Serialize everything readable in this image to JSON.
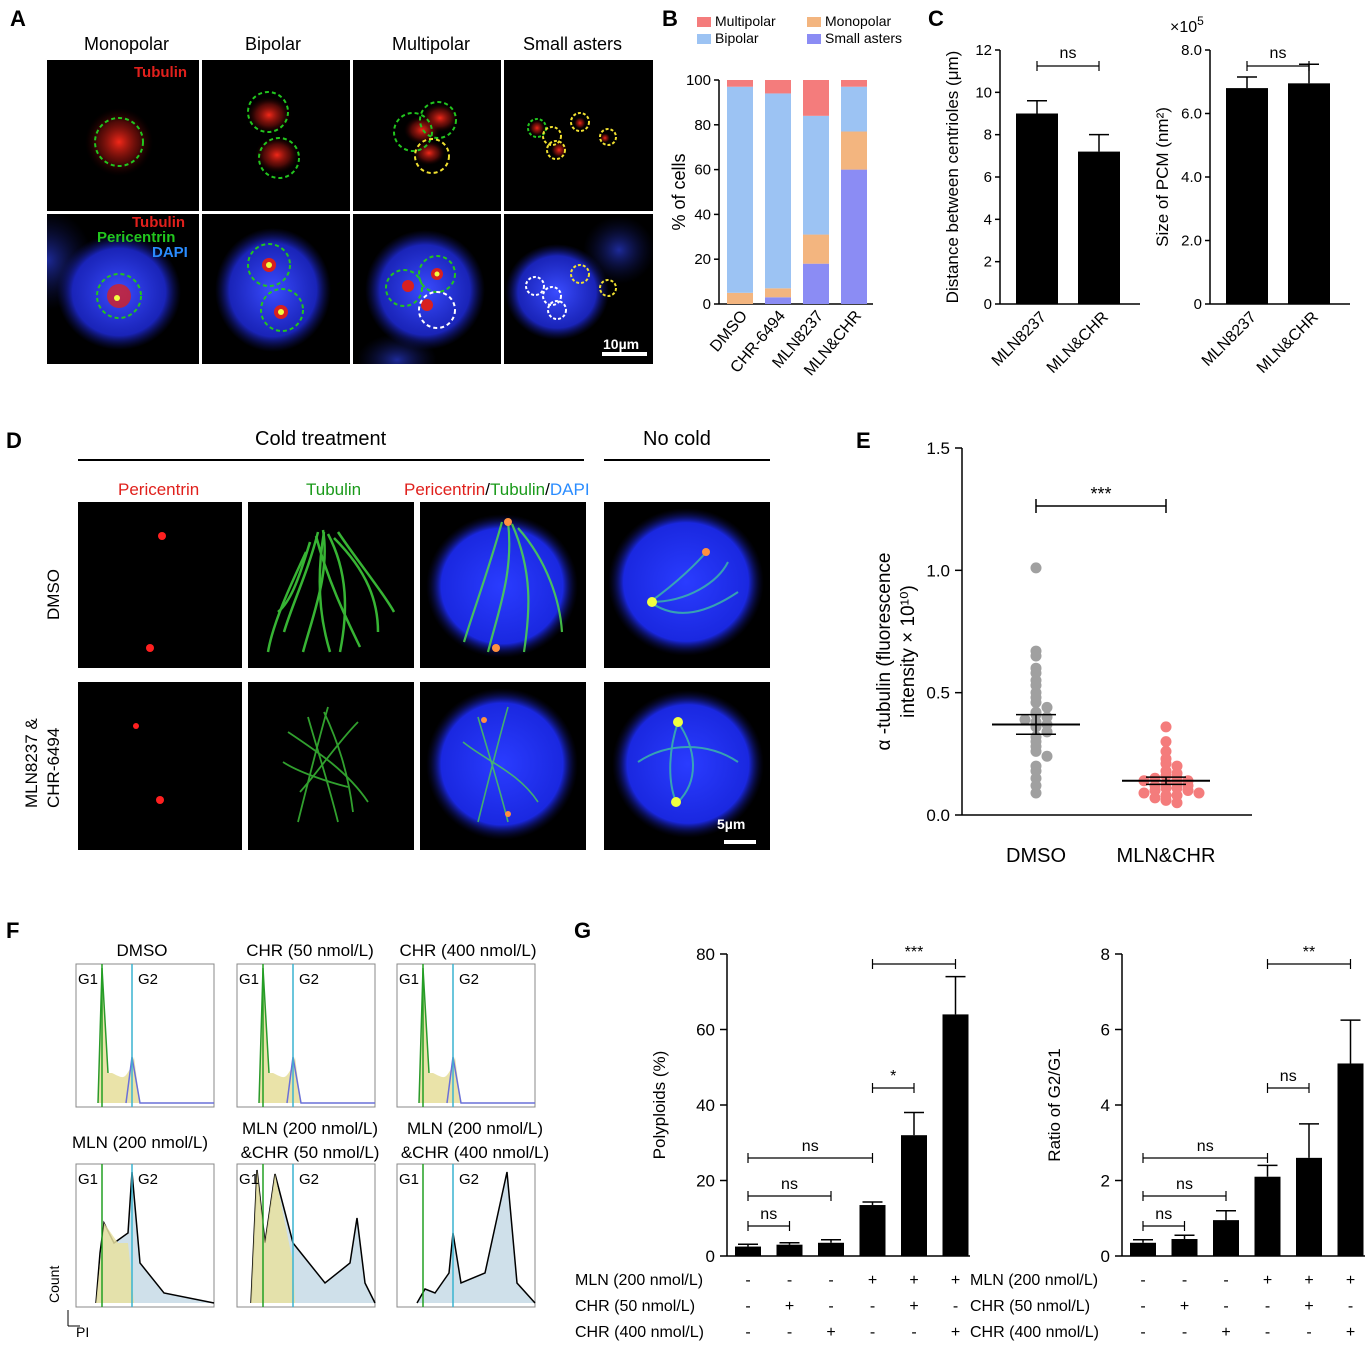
{
  "panels": {
    "A": "A",
    "B": "B",
    "C": "C",
    "D": "D",
    "E": "E",
    "F": "F",
    "G": "G"
  },
  "panelA": {
    "columns": [
      "Monopolar",
      "Bipolar",
      "Multipolar",
      "Small asters"
    ],
    "row1_label": "Tubulin",
    "row2_labels": [
      "Tubulin",
      "Pericentrin",
      "DAPI"
    ],
    "scale_bar": "10µm",
    "colors": {
      "tubulin": "#e0201c",
      "pericentrin": "#22c51e",
      "dapi": "#2a5cff"
    }
  },
  "panelB": {
    "legend": [
      "Multipolar",
      "Monopolar",
      "Bipolar",
      "Small asters"
    ],
    "colors": {
      "Multipolar": "#f47c7c",
      "Monopolar": "#f3b57f",
      "Bipolar": "#9cc3f3",
      "Small asters": "#8b8cf4"
    }
  },
  "panelC": {
    "exponent_label": "×10",
    "exponent_sup": "5",
    "sig": "ns"
  },
  "panelD": {
    "group_cold": "Cold treatment",
    "group_nocold": "No cold",
    "col_pericentrin": "Pericentrin",
    "col_tubulin": "Tubulin",
    "merge_parts": [
      "Pericentrin",
      "/",
      "Tubulin",
      "/",
      "DAPI"
    ],
    "rows": [
      "DMSO",
      "MLN8237 &",
      "CHR-6494"
    ],
    "scale_bar": "5µm"
  },
  "panelE": {
    "dmso_values": [
      1.01,
      0.67,
      0.65,
      0.6,
      0.58,
      0.55,
      0.53,
      0.5,
      0.48,
      0.46,
      0.44,
      0.42,
      0.41,
      0.4,
      0.39,
      0.38,
      0.37,
      0.36,
      0.34,
      0.32,
      0.3,
      0.28,
      0.26,
      0.24,
      0.2,
      0.18,
      0.15,
      0.12,
      0.09
    ],
    "mlnchr_values": [
      0.36,
      0.3,
      0.26,
      0.23,
      0.21,
      0.2,
      0.18,
      0.17,
      0.16,
      0.15,
      0.15,
      0.14,
      0.14,
      0.13,
      0.13,
      0.12,
      0.12,
      0.11,
      0.11,
      0.1,
      0.1,
      0.09,
      0.09,
      0.08,
      0.08,
      0.07,
      0.06,
      0.05
    ],
    "dmso_color": "#a0a0a0",
    "mlnchr_color": "#f47c7c"
  },
  "panelF": {
    "titles": [
      "DMSO",
      "CHR (50 nmol/L)",
      "CHR (400 nmol/L)",
      "MLN (200 nmol/L)",
      "MLN (200 nmol/L)",
      "&CHR (50 nmol/L)",
      "MLN (200 nmol/L)",
      "&CHR (400 nmol/L)"
    ],
    "g1": "G1",
    "g2": "G2",
    "y_axis": "Count",
    "x_axis": "PI"
  },
  "panelG": {
    "row_labels": [
      "MLN (200 nmol/L)",
      "CHR (50 nmol/L)",
      "CHR (400 nmol/L)"
    ],
    "signs": [
      [
        "-",
        "-",
        "-",
        "+",
        "+",
        "+"
      ],
      [
        "-",
        "+",
        "-",
        "-",
        "+",
        "-"
      ],
      [
        "-",
        "-",
        "+",
        "-",
        "-",
        "+"
      ]
    ]
  },
  "chart_data": [
    {
      "type": "bar",
      "id": "B",
      "stacked": true,
      "categories": [
        "DMSO",
        "CHR-6494",
        "MLN8237",
        "MLN&CHR"
      ],
      "series": [
        {
          "name": "Small asters",
          "values": [
            0,
            3,
            18,
            60
          ]
        },
        {
          "name": "Monopolar",
          "values": [
            5,
            4,
            13,
            17
          ]
        },
        {
          "name": "Bipolar",
          "values": [
            92,
            87,
            53,
            20
          ]
        },
        {
          "name": "Multipolar",
          "values": [
            3,
            6,
            16,
            3
          ]
        }
      ],
      "ylabel": "% of cells",
      "ylim": [
        0,
        100
      ],
      "yticks": [
        0,
        20,
        40,
        60,
        80,
        100
      ],
      "legend": "top"
    },
    {
      "type": "bar",
      "id": "C1",
      "categories": [
        "MLN8237",
        "MLN&CHR"
      ],
      "values": [
        9.0,
        7.2
      ],
      "errors": [
        0.6,
        0.8
      ],
      "ylabel": "Distance between centrioles (μm)",
      "ylim": [
        0,
        12
      ],
      "yticks": [
        0,
        2,
        4,
        6,
        8,
        10,
        12
      ],
      "significance": "ns"
    },
    {
      "type": "bar",
      "id": "C2",
      "categories": [
        "MLN8237",
        "MLN&CHR"
      ],
      "values": [
        6.8,
        6.95
      ],
      "errors": [
        0.35,
        0.6
      ],
      "ylabel": "Size of PCM (nm²)",
      "ylim": [
        0,
        8
      ],
      "yticks": [
        "0",
        "2.0",
        "4.0",
        "6.0",
        "8.0"
      ],
      "significance": "ns"
    },
    {
      "type": "scatter",
      "id": "E",
      "categories": [
        "DMSO",
        "MLN&CHR"
      ],
      "means": [
        0.37,
        0.14
      ],
      "sem": [
        0.04,
        0.015
      ],
      "ylabel": "α -tubulin (fluorescence intensity × 10¹⁰)",
      "ylim": [
        0,
        1.5
      ],
      "yticks": [
        "0.0",
        "0.5",
        "1.0",
        "1.5"
      ],
      "significance": "***"
    },
    {
      "type": "bar",
      "id": "G1",
      "categories": [
        "1",
        "2",
        "3",
        "4",
        "5",
        "6"
      ],
      "values": [
        2.5,
        3.0,
        3.5,
        13.5,
        32,
        64
      ],
      "errors": [
        0.6,
        0.5,
        0.8,
        0.8,
        6,
        10
      ],
      "ylabel": "Polyploids (%)",
      "ylim": [
        0,
        80
      ],
      "yticks": [
        0,
        20,
        40,
        60,
        80
      ],
      "comparisons": [
        {
          "from": 0,
          "to": 1,
          "label": "ns"
        },
        {
          "from": 0,
          "to": 2,
          "label": "ns"
        },
        {
          "from": 0,
          "to": 3,
          "label": "ns"
        },
        {
          "from": 3,
          "to": 4,
          "label": "*"
        },
        {
          "from": 3,
          "to": 5,
          "label": "***"
        }
      ]
    },
    {
      "type": "bar",
      "id": "G2",
      "categories": [
        "1",
        "2",
        "3",
        "4",
        "5",
        "6"
      ],
      "values": [
        0.35,
        0.45,
        0.95,
        2.1,
        2.6,
        5.1
      ],
      "errors": [
        0.08,
        0.1,
        0.25,
        0.3,
        0.9,
        1.15
      ],
      "ylabel": "Ratio of G2/G1",
      "ylim": [
        0,
        8
      ],
      "yticks": [
        0,
        2,
        4,
        6,
        8
      ],
      "comparisons": [
        {
          "from": 0,
          "to": 1,
          "label": "ns"
        },
        {
          "from": 0,
          "to": 2,
          "label": "ns"
        },
        {
          "from": 0,
          "to": 3,
          "label": "ns"
        },
        {
          "from": 3,
          "to": 4,
          "label": "ns"
        },
        {
          "from": 3,
          "to": 5,
          "label": "**"
        }
      ]
    }
  ]
}
